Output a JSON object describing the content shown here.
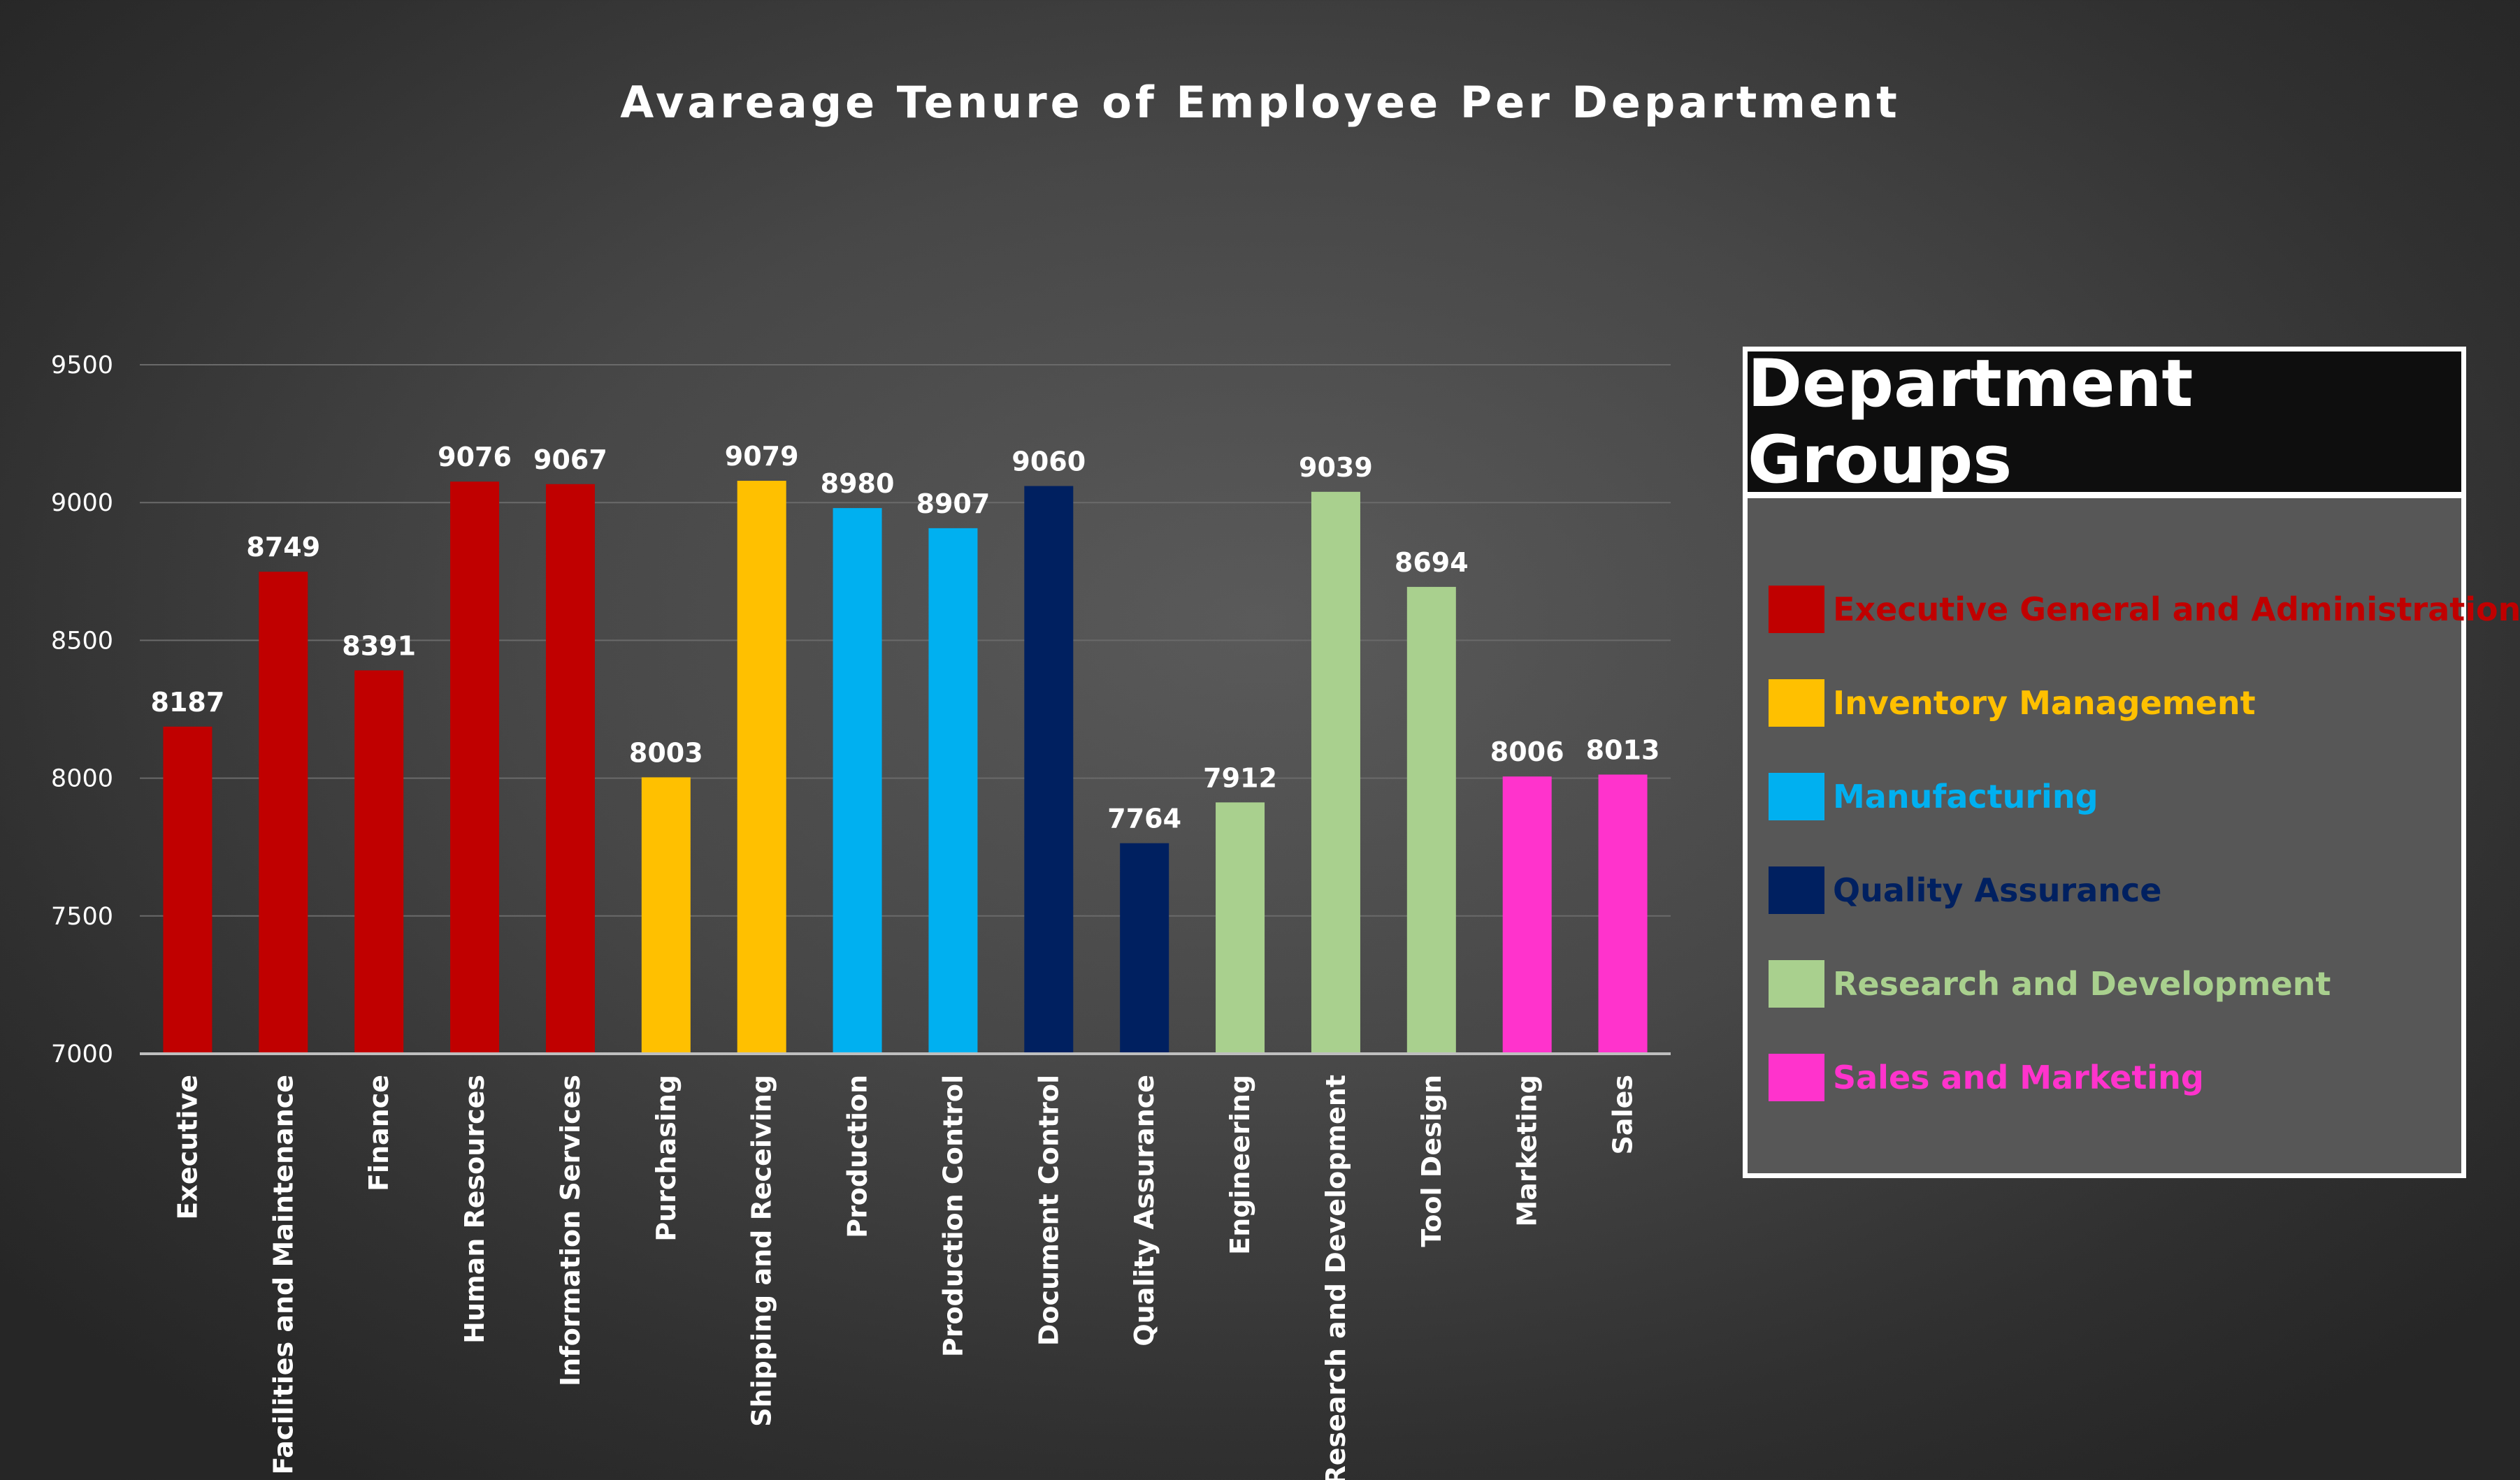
{
  "chart_data": {
    "type": "bar",
    "title": "Avareage Tenure of Employee Per Department",
    "xlabel": "",
    "ylabel": "",
    "ylim": [
      7000,
      9500
    ],
    "yticks": [
      7000,
      7500,
      8000,
      8500,
      9000,
      9500
    ],
    "grid": true,
    "legend_position": "right",
    "categories": [
      "Executive",
      "Facilities and Maintenance",
      "Finance",
      "Human Resources",
      "Information Services",
      "Purchasing",
      "Shipping and Receiving",
      "Production",
      "Production Control",
      "Document Control",
      "Quality Assurance",
      "Engineering",
      "Research and Development",
      "Tool Design",
      "Marketing",
      "Sales"
    ],
    "values": [
      8187,
      8749,
      8391,
      9076,
      9067,
      8003,
      9079,
      8980,
      8907,
      9060,
      7764,
      7912,
      9039,
      8694,
      8006,
      8013
    ],
    "bar_groups": [
      0,
      0,
      0,
      0,
      0,
      1,
      1,
      2,
      2,
      3,
      3,
      4,
      4,
      4,
      5,
      5
    ],
    "value_labels": [
      "8187",
      "8749",
      "8391",
      "9076",
      "9067",
      "8003",
      "9079",
      "8980",
      "8907",
      "9060",
      "7764",
      "7912",
      "9039",
      "8694",
      "8006",
      "8013"
    ],
    "groups": [
      {
        "name": "Executive General and Administration",
        "color": "#c00000"
      },
      {
        "name": "Inventory Management",
        "color": "#ffc000"
      },
      {
        "name": "Manufacturing",
        "color": "#00b0f0"
      },
      {
        "name": "Quality Assurance",
        "color": "#002060"
      },
      {
        "name": "Research and Development",
        "color": "#a9d08e"
      },
      {
        "name": "Sales and Marketing",
        "color": "#ff33cc"
      }
    ]
  },
  "legend": {
    "title": "Department Groups",
    "items": [
      {
        "label": "Executive General and Administration",
        "color": "#c00000"
      },
      {
        "label": "Inventory Management",
        "color": "#ffc000"
      },
      {
        "label": "Manufacturing",
        "color": "#00b0f0"
      },
      {
        "label": "Quality Assurance",
        "color": "#002060"
      },
      {
        "label": "Research and Development",
        "color": "#a9d08e"
      },
      {
        "label": "Sales and Marketing",
        "color": "#ff33cc"
      }
    ]
  },
  "colors": {
    "axis_line": "#bfbfbf",
    "gridline": "#6a6a6a"
  }
}
